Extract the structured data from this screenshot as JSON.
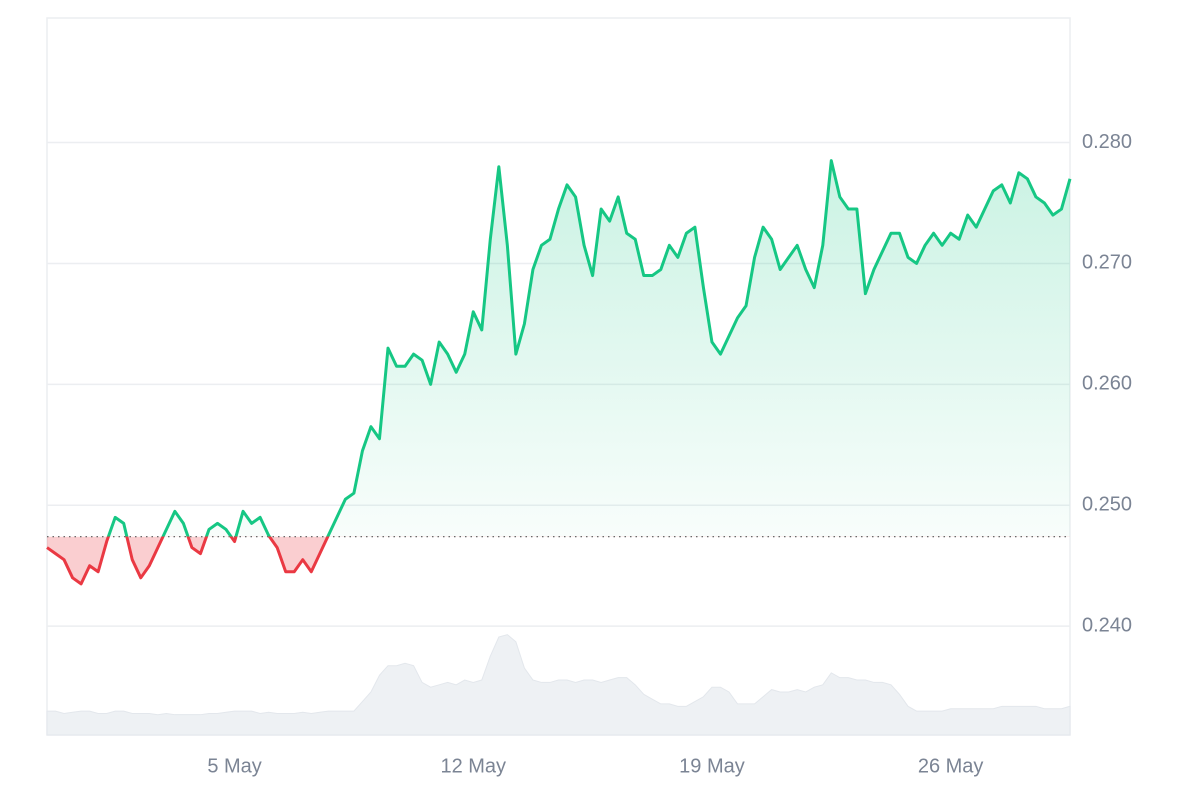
{
  "chart_data": {
    "type": "line",
    "categories": [
      null,
      null,
      null,
      null,
      null,
      null,
      null,
      null,
      null,
      null,
      null,
      null,
      null,
      null,
      null,
      null,
      null,
      null,
      null,
      null,
      null,
      null,
      "5 May",
      null,
      null,
      null,
      null,
      null,
      null,
      null,
      null,
      null,
      null,
      null,
      null,
      null,
      null,
      null,
      null,
      null,
      null,
      null,
      null,
      null,
      null,
      null,
      null,
      null,
      null,
      null,
      "12 May",
      null,
      null,
      null,
      null,
      null,
      null,
      null,
      null,
      null,
      null,
      null,
      null,
      null,
      null,
      null,
      null,
      null,
      null,
      null,
      null,
      null,
      null,
      null,
      null,
      null,
      null,
      null,
      "19 May",
      null,
      null,
      null,
      null,
      null,
      null,
      null,
      null,
      null,
      null,
      null,
      null,
      null,
      null,
      null,
      null,
      null,
      null,
      null,
      null,
      null,
      null,
      null,
      null,
      null,
      null,
      null,
      "26 May",
      null,
      null,
      null,
      null,
      null,
      null,
      null,
      null,
      null,
      null,
      null,
      null,
      null,
      null
    ],
    "series": [
      {
        "type": "line",
        "color": "#16c784",
        "below_color": "#ea3943",
        "values": [
          0.2465,
          0.246,
          0.2455,
          0.244,
          0.2435,
          0.245,
          0.2445,
          0.247,
          0.249,
          0.2485,
          0.2455,
          0.244,
          0.245,
          0.2465,
          0.248,
          0.2495,
          0.2485,
          0.2465,
          0.246,
          0.248,
          0.2485,
          0.248,
          0.247,
          0.2495,
          0.2485,
          0.249,
          0.2475,
          0.2465,
          0.2445,
          0.2445,
          0.2455,
          0.2445,
          0.246,
          0.2475,
          0.249,
          0.2505,
          0.251,
          0.2545,
          0.2565,
          0.2555,
          0.263,
          0.2615,
          0.2615,
          0.2625,
          0.262,
          0.26,
          0.2635,
          0.2625,
          0.261,
          0.2625,
          0.266,
          0.2645,
          0.272,
          0.278,
          0.2715,
          0.2625,
          0.265,
          0.2695,
          0.2715,
          0.272,
          0.2745,
          0.2765,
          0.2755,
          0.2715,
          0.269,
          0.2745,
          0.2735,
          0.2755,
          0.2725,
          0.272,
          0.269,
          0.269,
          0.2695,
          0.2715,
          0.2705,
          0.2725,
          0.273,
          0.268,
          0.2635,
          0.2625,
          0.264,
          0.2655,
          0.2665,
          0.2705,
          0.273,
          0.272,
          0.2695,
          0.2705,
          0.2715,
          0.2695,
          0.268,
          0.2715,
          0.2785,
          0.2755,
          0.2745,
          0.2745,
          0.2675,
          0.2695,
          0.271,
          0.2725,
          0.2725,
          0.2705,
          0.27,
          0.2715,
          0.2725,
          0.2715,
          0.2725,
          0.272,
          0.274,
          0.273,
          0.2745,
          0.276,
          0.2765,
          0.275,
          0.2775,
          0.277,
          0.2755,
          0.275,
          0.274,
          0.2745,
          0.277
        ]
      },
      {
        "type": "area",
        "axis": "y2",
        "color": "#eef1f4",
        "values": [
          1,
          1,
          0.9,
          0.95,
          1,
          1,
          0.9,
          0.9,
          1,
          1,
          0.9,
          0.9,
          0.9,
          0.85,
          0.9,
          0.85,
          0.85,
          0.85,
          0.85,
          0.9,
          0.9,
          0.95,
          1,
          1,
          1,
          0.9,
          0.95,
          0.9,
          0.9,
          0.9,
          0.95,
          0.9,
          0.95,
          1,
          1,
          1,
          1,
          1.4,
          1.8,
          2.5,
          2.9,
          2.9,
          3,
          2.9,
          2.2,
          2,
          2.1,
          2.2,
          2.1,
          2.3,
          2.2,
          2.3,
          3.3,
          4.1,
          4.2,
          3.9,
          2.8,
          2.3,
          2.2,
          2.2,
          2.3,
          2.3,
          2.2,
          2.3,
          2.3,
          2.2,
          2.3,
          2.4,
          2.4,
          2.1,
          1.7,
          1.5,
          1.3,
          1.3,
          1.2,
          1.2,
          1.4,
          1.6,
          2,
          2,
          1.8,
          1.3,
          1.3,
          1.3,
          1.6,
          1.9,
          1.8,
          1.8,
          1.9,
          1.8,
          2,
          2.1,
          2.6,
          2.4,
          2.4,
          2.3,
          2.3,
          2.2,
          2.2,
          2.1,
          1.7,
          1.2,
          1,
          1,
          1,
          1,
          1.1,
          1.1,
          1.1,
          1.1,
          1.1,
          1.1,
          1.2,
          1.2,
          1.2,
          1.2,
          1.2,
          1.1,
          1.1,
          1.1,
          1.2
        ]
      }
    ],
    "reference_value": 0.2474,
    "ylim": [
      0.231,
      0.2903
    ],
    "yticks": [
      {
        "value": 0.24,
        "label": "0.240"
      },
      {
        "value": 0.25,
        "label": "0.250"
      },
      {
        "value": 0.26,
        "label": "0.260"
      },
      {
        "value": 0.27,
        "label": "0.270"
      },
      {
        "value": 0.28,
        "label": "0.280"
      }
    ],
    "y2lim": [
      0,
      30
    ],
    "grid": true
  }
}
